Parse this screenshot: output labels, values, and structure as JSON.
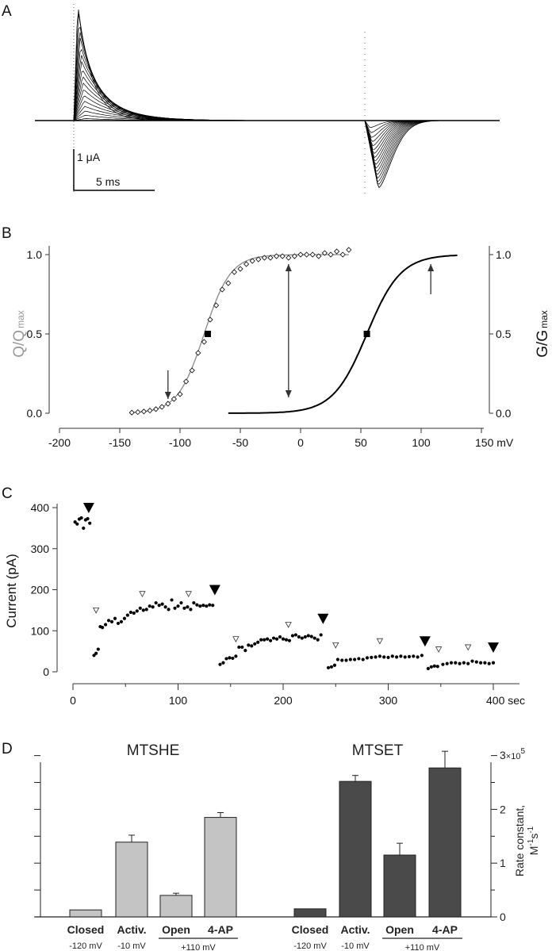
{
  "panels": {
    "a": "A",
    "b": "B",
    "c": "C",
    "d": "D"
  },
  "chart_data": [
    {
      "panel": "A",
      "type": "line",
      "scale_bar": {
        "current": "1 μA",
        "time": "5 ms"
      },
      "color": "#000000"
    },
    {
      "panel": "B",
      "type": "scatter",
      "xlabel_unit": "mV",
      "ylabel_left": {
        "main": "Q/Q",
        "sub": "max"
      },
      "ylabel_right": {
        "main": "G/G",
        "sub": "max"
      },
      "xlim": [
        -200,
        150
      ],
      "ylim": [
        0,
        1.0
      ],
      "x_ticks": [
        "-200",
        "-150",
        "-100",
        "-50",
        "0",
        "50",
        "100",
        "150 mV"
      ],
      "y_ticks": [
        "0.0",
        "0.5",
        "1.0"
      ],
      "q_data": [
        [
          -140,
          0.004
        ],
        [
          -135,
          0.007
        ],
        [
          -130,
          0.011
        ],
        [
          -125,
          0.017
        ],
        [
          -120,
          0.026
        ],
        [
          -115,
          0.04
        ],
        [
          -110,
          0.06
        ],
        [
          -105,
          0.09
        ],
        [
          -100,
          0.12
        ],
        [
          -95,
          0.2
        ],
        [
          -90,
          0.27
        ],
        [
          -85,
          0.38
        ],
        [
          -80,
          0.45
        ],
        [
          -75,
          0.59
        ],
        [
          -70,
          0.68
        ],
        [
          -65,
          0.78
        ],
        [
          -60,
          0.82
        ],
        [
          -55,
          0.89
        ],
        [
          -50,
          0.91
        ],
        [
          -45,
          0.94
        ],
        [
          -40,
          0.96
        ],
        [
          -35,
          0.97
        ],
        [
          -30,
          0.98
        ],
        [
          -25,
          0.98
        ],
        [
          -20,
          0.99
        ],
        [
          -15,
          0.99
        ],
        [
          -10,
          0.98
        ],
        [
          -5,
          0.99
        ],
        [
          0,
          1.0
        ],
        [
          5,
          1.0
        ],
        [
          10,
          1.0
        ],
        [
          15,
          0.99
        ],
        [
          20,
          1.01
        ],
        [
          25,
          1.0
        ],
        [
          30,
          1.02
        ],
        [
          35,
          1.0
        ],
        [
          40,
          1.03
        ]
      ],
      "q_fit": {
        "v_half": -80,
        "slope": 11,
        "range": [
          -110,
          -60
        ],
        "color": "#888888"
      },
      "g_fit": {
        "v_half": 55,
        "slope": 14,
        "range": [
          -60,
          130
        ],
        "color": "#000000"
      },
      "half_points": [
        [
          -77,
          0.5
        ],
        [
          55,
          0.5
        ]
      ],
      "arrows": [
        {
          "x": -110,
          "from": 0.27,
          "to": 0.09,
          "type": "down"
        },
        {
          "x": -10,
          "from": 0.1,
          "to": 0.94,
          "type": "double"
        },
        {
          "x": 108,
          "from": 0.75,
          "to": 0.94,
          "type": "up"
        }
      ]
    },
    {
      "panel": "C",
      "type": "scatter",
      "ylabel": "Current (pA)",
      "xlim": [
        0,
        400
      ],
      "ylim": [
        0,
        400
      ],
      "x_ticks": [
        "0",
        "100",
        "200",
        "300",
        "400 sec"
      ],
      "y_ticks": [
        "0",
        "100",
        "200",
        "300",
        "400"
      ],
      "points": [
        [
          2,
          365
        ],
        [
          4,
          360
        ],
        [
          6,
          372
        ],
        [
          8,
          375
        ],
        [
          10,
          350
        ],
        [
          12,
          370
        ],
        [
          14,
          373
        ],
        [
          16,
          362
        ],
        [
          20,
          40
        ],
        [
          22,
          45
        ],
        [
          24,
          55
        ],
        [
          26,
          110
        ],
        [
          28,
          108
        ],
        [
          31,
          115
        ],
        [
          34,
          125
        ],
        [
          37,
          122
        ],
        [
          40,
          130
        ],
        [
          43,
          118
        ],
        [
          46,
          122
        ],
        [
          49,
          130
        ],
        [
          52,
          138
        ],
        [
          55,
          145
        ],
        [
          58,
          143
        ],
        [
          61,
          148
        ],
        [
          64,
          155
        ],
        [
          67,
          150
        ],
        [
          70,
          152
        ],
        [
          73,
          160
        ],
        [
          76,
          158
        ],
        [
          79,
          168
        ],
        [
          82,
          162
        ],
        [
          85,
          165
        ],
        [
          88,
          158
        ],
        [
          91,
          152
        ],
        [
          94,
          175
        ],
        [
          97,
          155
        ],
        [
          100,
          160
        ],
        [
          103,
          168
        ],
        [
          106,
          155
        ],
        [
          109,
          158
        ],
        [
          112,
          152
        ],
        [
          115,
          168
        ],
        [
          118,
          163
        ],
        [
          121,
          160
        ],
        [
          124,
          162
        ],
        [
          127,
          160
        ],
        [
          130,
          163
        ],
        [
          133,
          162
        ],
        [
          140,
          18
        ],
        [
          143,
          22
        ],
        [
          146,
          32
        ],
        [
          149,
          34
        ],
        [
          152,
          33
        ],
        [
          155,
          38
        ],
        [
          158,
          60
        ],
        [
          161,
          60
        ],
        [
          164,
          52
        ],
        [
          167,
          65
        ],
        [
          170,
          63
        ],
        [
          173,
          68
        ],
        [
          176,
          72
        ],
        [
          179,
          78
        ],
        [
          182,
          78
        ],
        [
          185,
          80
        ],
        [
          188,
          76
        ],
        [
          191,
          82
        ],
        [
          194,
          80
        ],
        [
          197,
          85
        ],
        [
          200,
          80
        ],
        [
          203,
          78
        ],
        [
          206,
          76
        ],
        [
          209,
          88
        ],
        [
          212,
          90
        ],
        [
          215,
          85
        ],
        [
          218,
          82
        ],
        [
          221,
          85
        ],
        [
          224,
          88
        ],
        [
          227,
          86
        ],
        [
          230,
          82
        ],
        [
          233,
          78
        ],
        [
          236,
          90
        ],
        [
          243,
          10
        ],
        [
          246,
          12
        ],
        [
          249,
          16
        ],
        [
          252,
          30
        ],
        [
          256,
          28
        ],
        [
          260,
          28
        ],
        [
          264,
          30
        ],
        [
          268,
          30
        ],
        [
          272,
          32
        ],
        [
          276,
          30
        ],
        [
          280,
          34
        ],
        [
          284,
          35
        ],
        [
          288,
          36
        ],
        [
          292,
          38
        ],
        [
          296,
          36
        ],
        [
          300,
          35
        ],
        [
          304,
          38
        ],
        [
          308,
          36
        ],
        [
          312,
          38
        ],
        [
          316,
          36
        ],
        [
          320,
          37
        ],
        [
          324,
          38
        ],
        [
          328,
          36
        ],
        [
          332,
          40
        ],
        [
          338,
          8
        ],
        [
          341,
          12
        ],
        [
          344,
          14
        ],
        [
          347,
          13
        ],
        [
          352,
          18
        ],
        [
          356,
          20
        ],
        [
          360,
          22
        ],
        [
          364,
          22
        ],
        [
          368,
          20
        ],
        [
          372,
          22
        ],
        [
          376,
          20
        ],
        [
          380,
          26
        ],
        [
          384,
          24
        ],
        [
          388,
          22
        ],
        [
          392,
          22
        ],
        [
          396,
          20
        ],
        [
          400,
          22
        ]
      ],
      "filled_markers": [
        [
          15,
          400
        ],
        [
          135,
          200
        ],
        [
          238,
          130
        ],
        [
          335,
          75
        ],
        [
          400,
          60
        ]
      ],
      "open_markers": [
        [
          22,
          150
        ],
        [
          66,
          190
        ],
        [
          110,
          190
        ],
        [
          155,
          80
        ],
        [
          205,
          115
        ],
        [
          250,
          65
        ],
        [
          292,
          75
        ],
        [
          348,
          55
        ],
        [
          376,
          60
        ]
      ]
    },
    {
      "panel": "D",
      "type": "bar",
      "ylabel": {
        "main": "Rate constant,",
        "units": "M",
        "exp1": "-1",
        "s": "s",
        "exp2": "-1"
      },
      "y_ticks": [
        "0",
        "1",
        "2",
        "3"
      ],
      "y_multiplier": {
        "base": "×10",
        "exp": "5"
      },
      "ylim": [
        0,
        300000
      ],
      "groups": [
        {
          "title": "MTSHE",
          "color": "#c4c4c4",
          "categories": [
            "Closed",
            "Activ.",
            "Open",
            "4-AP"
          ],
          "values": [
            13000,
            139000,
            40000,
            185000
          ],
          "errors": [
            0,
            13000,
            4000,
            9000
          ]
        },
        {
          "title": "MTSET",
          "color": "#4a4a4a",
          "categories": [
            "Closed",
            "Activ.",
            "Open",
            "4-AP"
          ],
          "values": [
            15000,
            252000,
            115000,
            277000
          ],
          "errors": [
            0,
            11000,
            22000,
            31000
          ]
        }
      ],
      "voltages": [
        "-120 mV",
        "-10 mV",
        "+110 mV"
      ]
    }
  ]
}
